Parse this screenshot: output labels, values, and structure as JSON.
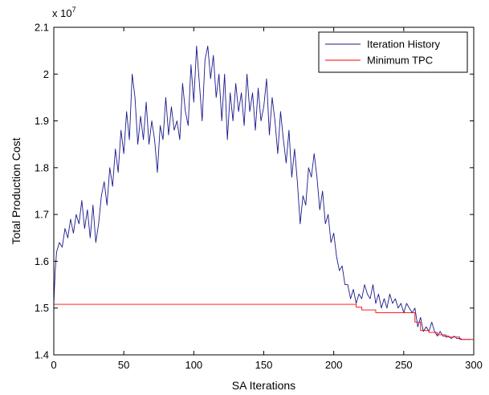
{
  "chart_data": {
    "type": "line",
    "title": "",
    "xlabel": "SA Iterations",
    "ylabel": "Total Production Cost",
    "y_exponent_label": "x 10",
    "y_exponent_power": "7",
    "xlim": [
      0,
      300
    ],
    "ylim": [
      1.4,
      2.1
    ],
    "x_ticks": [
      0,
      50,
      100,
      150,
      200,
      250,
      300
    ],
    "y_ticks": [
      1.4,
      1.5,
      1.6,
      1.7,
      1.8,
      1.9,
      2.0,
      2.1
    ],
    "x_tick_labels": [
      "0",
      "50",
      "100",
      "150",
      "200",
      "250",
      "300"
    ],
    "y_tick_labels": [
      "1.4",
      "1.5",
      "1.6",
      "1.7",
      "1.8",
      "1.9",
      "2",
      "2.1"
    ],
    "grid": false,
    "legend_position": "top-right",
    "series": [
      {
        "name": "Iteration History",
        "color": "#1a1a8c",
        "x": [
          0,
          1,
          2,
          4,
          6,
          8,
          10,
          12,
          14,
          16,
          18,
          20,
          22,
          24,
          26,
          28,
          30,
          32,
          34,
          36,
          38,
          40,
          42,
          44,
          46,
          48,
          50,
          52,
          54,
          56,
          58,
          60,
          62,
          64,
          66,
          68,
          70,
          72,
          74,
          76,
          78,
          80,
          82,
          84,
          86,
          88,
          90,
          92,
          94,
          96,
          98,
          100,
          102,
          104,
          106,
          108,
          110,
          112,
          114,
          116,
          118,
          120,
          122,
          124,
          126,
          128,
          130,
          132,
          134,
          136,
          138,
          140,
          142,
          144,
          146,
          148,
          150,
          152,
          154,
          156,
          158,
          160,
          162,
          164,
          166,
          168,
          170,
          172,
          174,
          176,
          178,
          180,
          182,
          184,
          186,
          188,
          190,
          192,
          194,
          196,
          198,
          200,
          202,
          204,
          206,
          208,
          210,
          212,
          214,
          216,
          218,
          220,
          222,
          224,
          226,
          228,
          230,
          232,
          234,
          236,
          238,
          240,
          242,
          244,
          246,
          248,
          250,
          252,
          254,
          256,
          258,
          260,
          262,
          264,
          266,
          268,
          270,
          272,
          274,
          276,
          278,
          280,
          282,
          284,
          286,
          288,
          290,
          292,
          294,
          296,
          298
        ],
        "y": [
          1.51,
          1.58,
          1.62,
          1.64,
          1.63,
          1.67,
          1.65,
          1.69,
          1.66,
          1.7,
          1.68,
          1.73,
          1.67,
          1.71,
          1.65,
          1.72,
          1.64,
          1.68,
          1.74,
          1.77,
          1.72,
          1.8,
          1.76,
          1.84,
          1.79,
          1.88,
          1.83,
          1.92,
          1.86,
          2.0,
          1.95,
          1.85,
          1.91,
          1.86,
          1.94,
          1.85,
          1.9,
          1.86,
          1.79,
          1.89,
          1.86,
          1.95,
          1.87,
          1.93,
          1.88,
          1.9,
          1.86,
          1.98,
          1.92,
          1.89,
          2.02,
          1.94,
          2.06,
          1.98,
          1.9,
          2.03,
          2.06,
          1.99,
          2.04,
          1.95,
          2.0,
          1.9,
          2.0,
          1.86,
          1.96,
          1.9,
          1.98,
          1.92,
          1.96,
          1.89,
          2.0,
          1.92,
          1.96,
          1.88,
          1.97,
          1.9,
          1.93,
          1.99,
          1.87,
          1.95,
          1.9,
          1.83,
          1.92,
          1.86,
          1.81,
          1.88,
          1.78,
          1.84,
          1.77,
          1.68,
          1.74,
          1.72,
          1.8,
          1.78,
          1.83,
          1.78,
          1.71,
          1.75,
          1.68,
          1.7,
          1.64,
          1.66,
          1.61,
          1.58,
          1.59,
          1.55,
          1.55,
          1.52,
          1.54,
          1.51,
          1.53,
          1.52,
          1.55,
          1.53,
          1.52,
          1.55,
          1.51,
          1.53,
          1.5,
          1.52,
          1.5,
          1.53,
          1.51,
          1.52,
          1.5,
          1.51,
          1.49,
          1.51,
          1.5,
          1.49,
          1.5,
          1.46,
          1.48,
          1.45,
          1.46,
          1.45,
          1.47,
          1.45,
          1.44,
          1.45,
          1.44,
          1.44,
          1.44,
          1.435,
          1.44,
          1.435,
          1.435,
          1.433,
          1.433,
          1.433,
          1.433
        ]
      },
      {
        "name": "Minimum TPC",
        "color": "#ff0000",
        "x": [
          0,
          216,
          216,
          220,
          220,
          230,
          230,
          258,
          258,
          262,
          262,
          268,
          268,
          274,
          274,
          280,
          280,
          290,
          290,
          300
        ],
        "y": [
          1.508,
          1.508,
          1.502,
          1.502,
          1.496,
          1.496,
          1.49,
          1.49,
          1.47,
          1.47,
          1.452,
          1.452,
          1.448,
          1.448,
          1.443,
          1.443,
          1.438,
          1.438,
          1.433,
          1.433
        ]
      }
    ]
  }
}
